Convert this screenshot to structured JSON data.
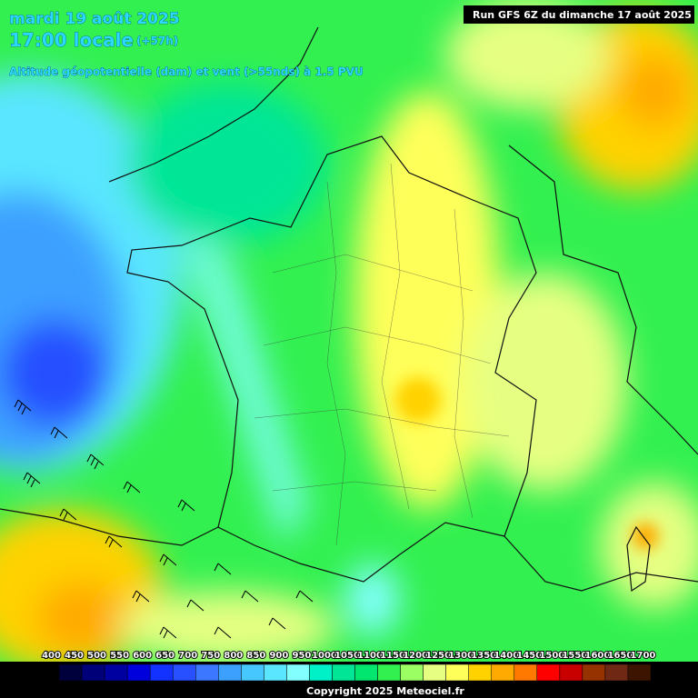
{
  "header": {
    "date": "mardi 19 août 2025",
    "time": "17:00 locale",
    "lead": "(+57h)",
    "parameter": "Altitude géopotentielle (dam) et vent (>55nds) à 1.5 PVU",
    "run": "Run GFS 6Z du dimanche 17 août 2025"
  },
  "legend": {
    "items": [
      {
        "label": "400",
        "color": "#000000"
      },
      {
        "label": "450",
        "color": "#00003c"
      },
      {
        "label": "500",
        "color": "#000078"
      },
      {
        "label": "550",
        "color": "#0000a0"
      },
      {
        "label": "600",
        "color": "#0000dc"
      },
      {
        "label": "650",
        "color": "#1432ff"
      },
      {
        "label": "700",
        "color": "#2850ff"
      },
      {
        "label": "750",
        "color": "#3c78ff"
      },
      {
        "label": "800",
        "color": "#3ca0ff"
      },
      {
        "label": "850",
        "color": "#46c8ff"
      },
      {
        "label": "900",
        "color": "#5ae6ff"
      },
      {
        "label": "950",
        "color": "#82ffff"
      },
      {
        "label": "1000",
        "color": "#00f0c8"
      },
      {
        "label": "1050",
        "color": "#00e696"
      },
      {
        "label": "1100",
        "color": "#00e66e"
      },
      {
        "label": "1150",
        "color": "#32f050"
      },
      {
        "label": "1200",
        "color": "#9bff64"
      },
      {
        "label": "1250",
        "color": "#e6ff82"
      },
      {
        "label": "1300",
        "color": "#ffff5a"
      },
      {
        "label": "1350",
        "color": "#ffd200"
      },
      {
        "label": "1400",
        "color": "#ffaa00"
      },
      {
        "label": "1450",
        "color": "#ff7800"
      },
      {
        "label": "1500",
        "color": "#ff0000"
      },
      {
        "label": "1550",
        "color": "#c80000"
      },
      {
        "label": "1600",
        "color": "#963200"
      },
      {
        "label": "1650",
        "color": "#6e2814"
      },
      {
        "label": "1700",
        "color": "#3c1400"
      }
    ]
  },
  "footer": {
    "copyright": "Copyright 2025 Meteociel.fr"
  }
}
